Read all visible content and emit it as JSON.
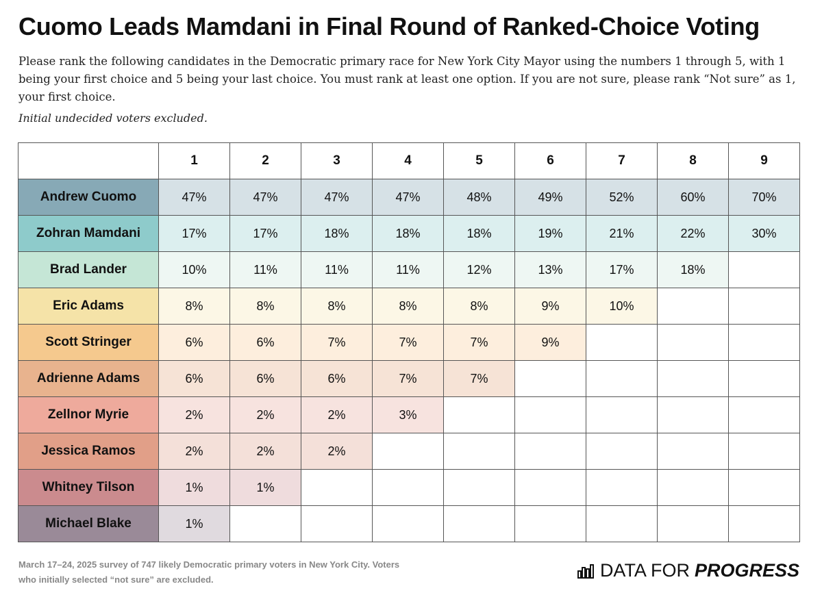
{
  "header": {
    "title": "Cuomo Leads Mamdani in Final Round of Ranked-Choice Voting",
    "description": "Please rank the following candidates in the Democratic primary race for New York City Mayor using the numbers 1 through 5, with 1 being your first choice and 5 being your last choice. You must rank at least one option. If you are not sure, please rank “Not sure” as 1, your first choice.",
    "note": "Initial undecided voters excluded."
  },
  "table": {
    "columns": [
      "1",
      "2",
      "3",
      "4",
      "5",
      "6",
      "7",
      "8",
      "9"
    ],
    "rows": [
      {
        "name": "Andrew Cuomo",
        "color": "#87a9b6",
        "tint": "#d6e1e6",
        "cells": [
          "47%",
          "47%",
          "47%",
          "47%",
          "48%",
          "49%",
          "52%",
          "60%",
          "70%"
        ]
      },
      {
        "name": "Zohran Mamdani",
        "color": "#8ecbcb",
        "tint": "#dcefef",
        "cells": [
          "17%",
          "17%",
          "18%",
          "18%",
          "18%",
          "19%",
          "21%",
          "22%",
          "30%"
        ]
      },
      {
        "name": "Brad Lander",
        "color": "#c5e6d6",
        "tint": "#eef7f3",
        "cells": [
          "10%",
          "11%",
          "11%",
          "11%",
          "12%",
          "13%",
          "17%",
          "18%"
        ]
      },
      {
        "name": "Eric Adams",
        "color": "#f5e3a8",
        "tint": "#fcf7e6",
        "cells": [
          "8%",
          "8%",
          "8%",
          "8%",
          "8%",
          "9%",
          "10%"
        ]
      },
      {
        "name": "Scott Stringer",
        "color": "#f5c98e",
        "tint": "#fdeedd",
        "cells": [
          "6%",
          "6%",
          "7%",
          "7%",
          "7%",
          "9%"
        ]
      },
      {
        "name": "Adrienne Adams",
        "color": "#e8b38e",
        "tint": "#f6e3d6",
        "cells": [
          "6%",
          "6%",
          "6%",
          "7%",
          "7%"
        ]
      },
      {
        "name": "Zellnor Myrie",
        "color": "#eeaa9c",
        "tint": "#f7e3df",
        "cells": [
          "2%",
          "2%",
          "2%",
          "3%"
        ]
      },
      {
        "name": "Jessica Ramos",
        "color": "#e19f88",
        "tint": "#f4e0d9",
        "cells": [
          "2%",
          "2%",
          "2%"
        ]
      },
      {
        "name": "Whitney Tilson",
        "color": "#cb8b8e",
        "tint": "#efdcdd",
        "cells": [
          "1%",
          "1%"
        ]
      },
      {
        "name": "Michael Blake",
        "color": "#9a8a98",
        "tint": "#e0dadf",
        "cells": [
          "1%"
        ]
      }
    ]
  },
  "footer": {
    "source": "March 17–24, 2025 survey of 747 likely Democratic primary voters in New York City. Voters who initially selected “not sure” are excluded.",
    "logo": {
      "prefix": "DATA FOR",
      "emphasis": "PROGRESS"
    }
  }
}
